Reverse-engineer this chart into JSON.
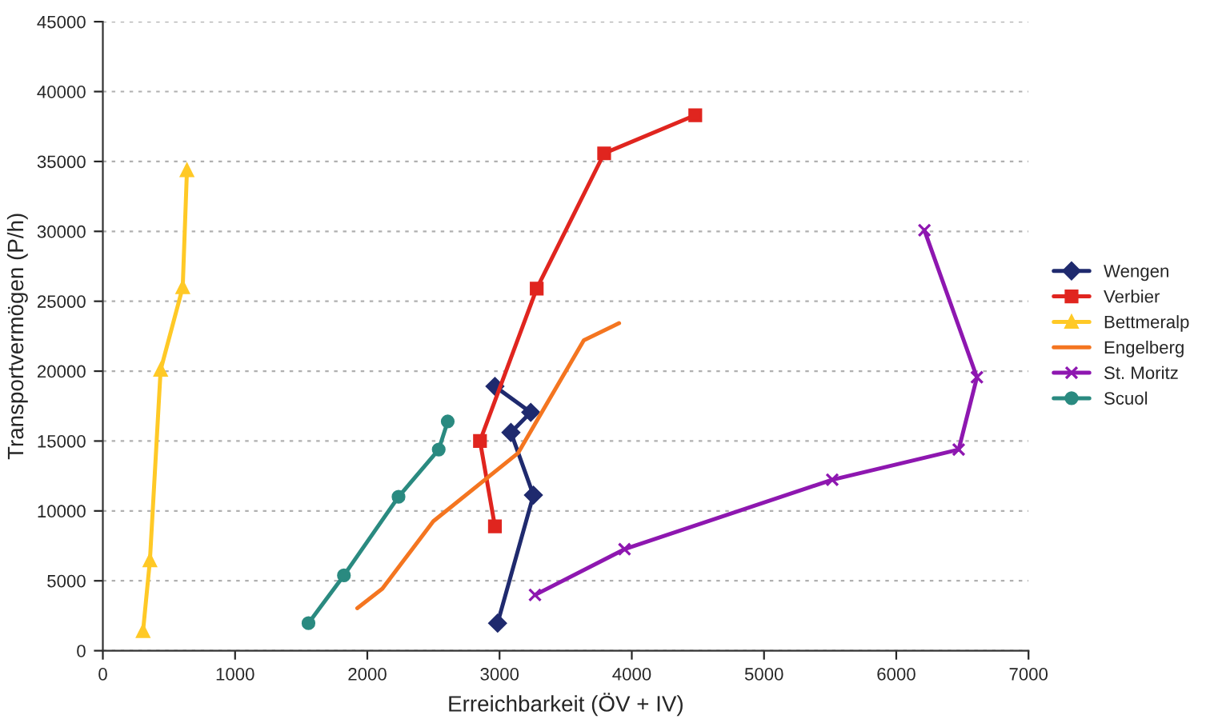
{
  "chart_data": {
    "type": "line",
    "xlabel": "Erreichbarkeit (ÖV + IV)",
    "ylabel": "Transportvermögen (P/h)",
    "xlim": [
      0,
      7000
    ],
    "xticks": [
      0,
      1000,
      2000,
      3000,
      4000,
      5000,
      6000,
      7000
    ],
    "ylim": [
      0,
      45000
    ],
    "yticks": [
      0,
      5000,
      10000,
      15000,
      20000,
      25000,
      30000,
      35000,
      40000,
      45000
    ],
    "grid": "y",
    "legend": "right",
    "line_style": "solid",
    "series": [
      {
        "name": "Wengen",
        "color": "#1f2a6e",
        "marker": "diamond",
        "x": [
          2985,
          3256,
          3086,
          3236,
          2965
        ],
        "values": [
          1970,
          11130,
          15610,
          17050,
          18910
        ]
      },
      {
        "name": "Verbier",
        "color": "#e0251f",
        "marker": "square",
        "x": [
          2965,
          2852,
          3281,
          3791,
          4480
        ],
        "values": [
          8890,
          15000,
          25900,
          35580,
          38310
        ]
      },
      {
        "name": "Bettmeralp",
        "color": "#ffc926",
        "marker": "triangle",
        "x": [
          304,
          356,
          437,
          604,
          636
        ],
        "values": [
          1400,
          6460,
          20090,
          26000,
          34370
        ]
      },
      {
        "name": "Engelberg",
        "color": "#f47520",
        "marker": "none",
        "x": [
          1924,
          2114,
          2499,
          3139,
          3637,
          3904
        ],
        "values": [
          3040,
          4440,
          9260,
          14130,
          22210,
          23430
        ]
      },
      {
        "name": "St. Moritz",
        "color": "#8e17b0",
        "marker": "cross",
        "x": [
          3268,
          3945,
          5516,
          6472,
          6610,
          6213
        ],
        "values": [
          3990,
          7260,
          12230,
          14390,
          19560,
          30080
        ]
      },
      {
        "name": "Scuol",
        "color": "#2a8a80",
        "marker": "circle",
        "x": [
          1555,
          1823,
          2236,
          2540,
          2608
        ],
        "values": [
          1970,
          5390,
          11010,
          14390,
          16400
        ]
      }
    ]
  }
}
